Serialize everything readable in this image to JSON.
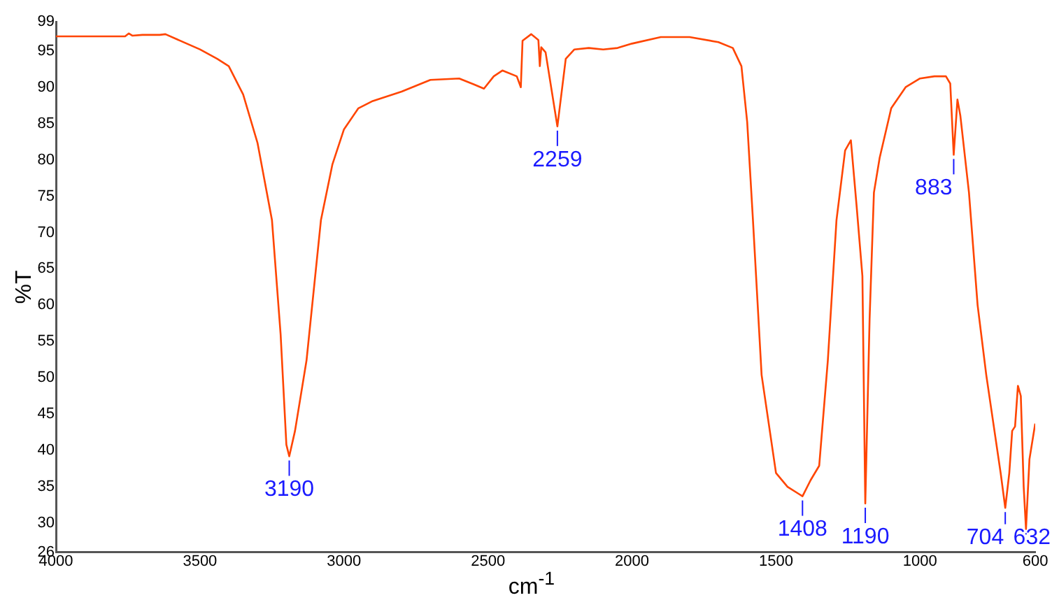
{
  "chart_data": {
    "type": "line",
    "xlabel": "cm$^{-1}$",
    "ylabel": "%T",
    "xlim": [
      4000,
      600
    ],
    "xticks": [
      4000,
      3500,
      3000,
      2500,
      2000,
      1500,
      1000,
      600
    ],
    "ylim": [
      26,
      99
    ],
    "yticks": [
      26,
      30,
      35,
      40,
      45,
      50,
      55,
      60,
      65,
      70,
      75,
      80,
      85,
      90,
      95,
      99
    ],
    "grid": false,
    "legend": false,
    "marker": "none",
    "line_style": "solid",
    "series": [
      {
        "color": "#ff4500",
        "x": [
          4000,
          3760,
          3747,
          3735,
          3700,
          3640,
          3620,
          3500,
          3440,
          3400,
          3350,
          3300,
          3250,
          3220,
          3200,
          3190,
          3170,
          3130,
          3080,
          3040,
          3000,
          2950,
          2900,
          2800,
          2700,
          2600,
          2550,
          2514,
          2480,
          2450,
          2400,
          2386,
          2380,
          2350,
          2325,
          2320,
          2315,
          2300,
          2259,
          2230,
          2200,
          2150,
          2100,
          2050,
          2000,
          1900,
          1800,
          1700,
          1650,
          1620,
          1600,
          1580,
          1550,
          1500,
          1460,
          1420,
          1408,
          1380,
          1350,
          1320,
          1290,
          1260,
          1240,
          1220,
          1200,
          1190,
          1175,
          1160,
          1140,
          1100,
          1050,
          1000,
          950,
          910,
          895,
          883,
          870,
          860,
          830,
          800,
          770,
          720,
          704,
          690,
          680,
          670,
          660,
          650,
          640,
          632,
          620,
          600
        ],
        "values": [
          97.0,
          97.0,
          97.4,
          97.1,
          97.2,
          97.2,
          97.3,
          95.2,
          93.9,
          92.9,
          89,
          82.3,
          71.7,
          56,
          40.8,
          39.2,
          42.7,
          52.4,
          71.7,
          79.4,
          84.2,
          87.1,
          88.1,
          89.4,
          91,
          91.2,
          90.4,
          89.8,
          91.5,
          92.3,
          91.5,
          90,
          96.4,
          97.3,
          96.5,
          92.9,
          95.5,
          94.8,
          84.6,
          93.9,
          95.2,
          95.4,
          95.2,
          95.4,
          96,
          96.9,
          96.9,
          96.2,
          95.4,
          92.9,
          85.2,
          71.7,
          50.4,
          36.9,
          35,
          34,
          33.7,
          35.9,
          37.9,
          52.4,
          71.7,
          81.3,
          82.7,
          73.6,
          64,
          32.7,
          58.1,
          75.5,
          80.3,
          87.1,
          90,
          91.2,
          91.5,
          91.5,
          90.5,
          80.7,
          88.3,
          86.1,
          75.5,
          60,
          50.4,
          36.9,
          32.1,
          36.9,
          42.7,
          43.3,
          48.9,
          47.5,
          35,
          29.2,
          38.8,
          43.7
        ]
      }
    ],
    "annotations": [
      {
        "text": "3190",
        "x": 3190,
        "y": 39.2
      },
      {
        "text": "2259",
        "x": 2259,
        "y": 84.6
      },
      {
        "text": "1408",
        "x": 1408,
        "y": 33.7
      },
      {
        "text": "1190",
        "x": 1190,
        "y": 32.7
      },
      {
        "text": "883",
        "x": 883,
        "y": 80.7
      },
      {
        "text": "704",
        "x": 704,
        "y": 32.1
      },
      {
        "text": "632",
        "x": 632,
        "y": 29.2
      }
    ]
  }
}
